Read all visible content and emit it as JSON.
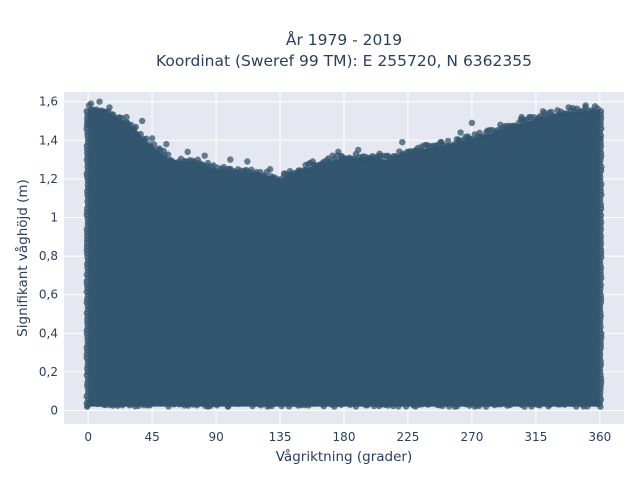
{
  "chart_data": {
    "type": "scatter",
    "title_line1": "År 1979 - 2019",
    "title_line2": "Koordinat (Sweref 99 TM): E 255720, N 6362355",
    "xlabel": "Vågriktning (grader)",
    "ylabel": "Signifikant våghöjd (m)",
    "xlim": [
      -17,
      377
    ],
    "ylim": [
      -0.07,
      1.65
    ],
    "x_ticks": [
      0,
      45,
      90,
      135,
      180,
      225,
      270,
      315,
      360
    ],
    "x_tick_labels": [
      "0",
      "45",
      "90",
      "135",
      "180",
      "225",
      "270",
      "315",
      "360"
    ],
    "y_ticks": [
      0,
      0.2,
      0.4,
      0.6,
      0.8,
      1.0,
      1.2,
      1.4,
      1.6
    ],
    "y_tick_labels": [
      "0",
      "0,2",
      "0,4",
      "0,6",
      "0,8",
      "1",
      "1,2",
      "1,4",
      "1,6"
    ],
    "grid": true,
    "colors": {
      "marker": "#33566f",
      "plot_background": "#e5e8f0",
      "grid": "#ffffff"
    },
    "upper_envelope": [
      {
        "x": 0,
        "y": 1.58
      },
      {
        "x": 10,
        "y": 1.58
      },
      {
        "x": 20,
        "y": 1.54
      },
      {
        "x": 30,
        "y": 1.5
      },
      {
        "x": 40,
        "y": 1.42
      },
      {
        "x": 50,
        "y": 1.36
      },
      {
        "x": 60,
        "y": 1.31
      },
      {
        "x": 75,
        "y": 1.31
      },
      {
        "x": 90,
        "y": 1.27
      },
      {
        "x": 105,
        "y": 1.26
      },
      {
        "x": 120,
        "y": 1.25
      },
      {
        "x": 135,
        "y": 1.22
      },
      {
        "x": 150,
        "y": 1.27
      },
      {
        "x": 165,
        "y": 1.3
      },
      {
        "x": 180,
        "y": 1.33
      },
      {
        "x": 195,
        "y": 1.33
      },
      {
        "x": 210,
        "y": 1.32
      },
      {
        "x": 225,
        "y": 1.36
      },
      {
        "x": 240,
        "y": 1.38
      },
      {
        "x": 255,
        "y": 1.4
      },
      {
        "x": 270,
        "y": 1.43
      },
      {
        "x": 285,
        "y": 1.46
      },
      {
        "x": 300,
        "y": 1.5
      },
      {
        "x": 315,
        "y": 1.53
      },
      {
        "x": 330,
        "y": 1.56
      },
      {
        "x": 345,
        "y": 1.57
      },
      {
        "x": 360,
        "y": 1.58
      }
    ],
    "outlier_points": [
      {
        "x": 2,
        "y": 1.59
      },
      {
        "x": 8,
        "y": 1.6
      },
      {
        "x": 15,
        "y": 1.57
      },
      {
        "x": 27,
        "y": 1.52
      },
      {
        "x": 38,
        "y": 1.5
      },
      {
        "x": 45,
        "y": 1.41
      },
      {
        "x": 55,
        "y": 1.38
      },
      {
        "x": 70,
        "y": 1.34
      },
      {
        "x": 82,
        "y": 1.32
      },
      {
        "x": 100,
        "y": 1.3
      },
      {
        "x": 112,
        "y": 1.29
      },
      {
        "x": 128,
        "y": 1.25
      },
      {
        "x": 142,
        "y": 1.24
      },
      {
        "x": 158,
        "y": 1.29
      },
      {
        "x": 172,
        "y": 1.32
      },
      {
        "x": 176,
        "y": 1.34
      },
      {
        "x": 190,
        "y": 1.35
      },
      {
        "x": 197,
        "y": 1.3
      },
      {
        "x": 205,
        "y": 1.33
      },
      {
        "x": 221,
        "y": 1.39
      },
      {
        "x": 232,
        "y": 1.36
      },
      {
        "x": 248,
        "y": 1.39
      },
      {
        "x": 262,
        "y": 1.44
      },
      {
        "x": 267,
        "y": 1.42
      },
      {
        "x": 270,
        "y": 1.49
      },
      {
        "x": 290,
        "y": 1.48
      },
      {
        "x": 305,
        "y": 1.52
      },
      {
        "x": 320,
        "y": 1.55
      },
      {
        "x": 338,
        "y": 1.57
      },
      {
        "x": 350,
        "y": 1.58
      }
    ]
  }
}
